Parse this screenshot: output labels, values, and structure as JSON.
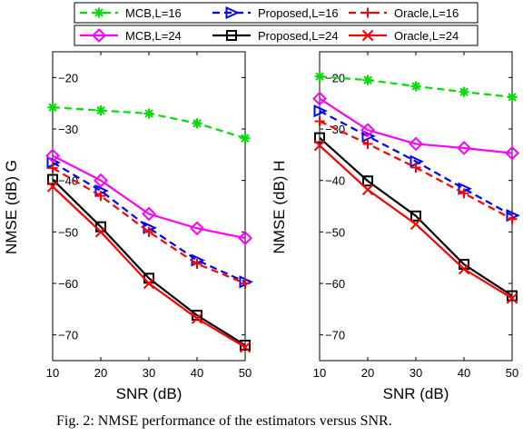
{
  "chart_data": [
    {
      "type": "line",
      "xlabel": "SNR (dB)",
      "ylabel": "NMSE (dB) G",
      "x": [
        10,
        20,
        30,
        40,
        50
      ],
      "xlim": [
        10,
        50
      ],
      "ylim": [
        -75,
        -15
      ],
      "xticks": [
        "10",
        "20",
        "30",
        "40",
        "50"
      ],
      "yticks": [
        "−70",
        "−60",
        "−50",
        "−40",
        "−30",
        "−20"
      ],
      "ytick_values": [
        -70,
        -60,
        -50,
        -40,
        -30,
        -20
      ],
      "grid": false,
      "series": [
        {
          "name": "MCB,L=16",
          "color": "#00dd00",
          "dash": true,
          "marker": "star",
          "values": [
            -25.8,
            -26.4,
            -27.0,
            -28.9,
            -31.8
          ]
        },
        {
          "name": "Proposed,L=16",
          "color": "#0000ff",
          "dash": true,
          "marker": "triangle-right",
          "values": [
            -36.5,
            -42.0,
            -49.2,
            -55.5,
            -59.7
          ]
        },
        {
          "name": "Oracle,L=16",
          "color": "#ff0000",
          "dash": true,
          "marker": "plus",
          "values": [
            -37.6,
            -43.0,
            -50.0,
            -56.2,
            -60.0
          ]
        },
        {
          "name": "MCB,L=24",
          "color": "#ff00ff",
          "dash": false,
          "marker": "diamond",
          "values": [
            -35.2,
            -40.0,
            -46.5,
            -49.3,
            -51.2
          ]
        },
        {
          "name": "Proposed,L=24",
          "color": "#000000",
          "dash": false,
          "marker": "square",
          "values": [
            -39.8,
            -49.0,
            -59.0,
            -66.2,
            -72.0
          ]
        },
        {
          "name": "Oracle,L=24",
          "color": "#ff0000",
          "dash": false,
          "marker": "x",
          "values": [
            -41.2,
            -50.0,
            -60.0,
            -66.8,
            -72.4
          ]
        }
      ]
    },
    {
      "type": "line",
      "xlabel": "SNR (dB)",
      "ylabel": "NMSE (dB) H",
      "x": [
        10,
        20,
        30,
        40,
        50
      ],
      "xlim": [
        10,
        50
      ],
      "ylim": [
        -75,
        -15
      ],
      "xticks": [
        "10",
        "20",
        "30",
        "40",
        "50"
      ],
      "yticks": [
        "−70",
        "−60",
        "−50",
        "−40",
        "−30",
        "−20"
      ],
      "ytick_values": [
        -70,
        -60,
        -50,
        -40,
        -30,
        -20
      ],
      "grid": false,
      "series": [
        {
          "name": "MCB,L=16",
          "color": "#00dd00",
          "dash": true,
          "marker": "star",
          "values": [
            -19.8,
            -20.5,
            -21.7,
            -22.8,
            -23.8
          ]
        },
        {
          "name": "Proposed,L=16",
          "color": "#0000ff",
          "dash": true,
          "marker": "triangle-right",
          "values": [
            -26.5,
            -31.4,
            -36.3,
            -41.6,
            -46.8
          ]
        },
        {
          "name": "Oracle,L=16",
          "color": "#ff0000",
          "dash": true,
          "marker": "plus",
          "values": [
            -28.5,
            -32.9,
            -37.5,
            -42.5,
            -47.5
          ]
        },
        {
          "name": "MCB,L=24",
          "color": "#ff00ff",
          "dash": false,
          "marker": "diamond",
          "values": [
            -24.1,
            -30.2,
            -32.9,
            -33.7,
            -34.7
          ]
        },
        {
          "name": "Proposed,L=24",
          "color": "#000000",
          "dash": false,
          "marker": "square",
          "values": [
            -31.7,
            -40.1,
            -46.9,
            -56.3,
            -62.4
          ]
        },
        {
          "name": "Oracle,L=24",
          "color": "#ff0000",
          "dash": false,
          "marker": "x",
          "values": [
            -33.2,
            -41.8,
            -48.5,
            -57.2,
            -62.9
          ]
        }
      ]
    }
  ],
  "legend": {
    "placement": "top",
    "rows": [
      [
        "MCB,L=16",
        "Proposed,L=16",
        "Oracle,L=16"
      ],
      [
        "MCB,L=24",
        "Proposed,L=24",
        "Oracle,L=24"
      ]
    ]
  },
  "caption": "Fig. 2:  NMSE performance of the estimators versus SNR."
}
